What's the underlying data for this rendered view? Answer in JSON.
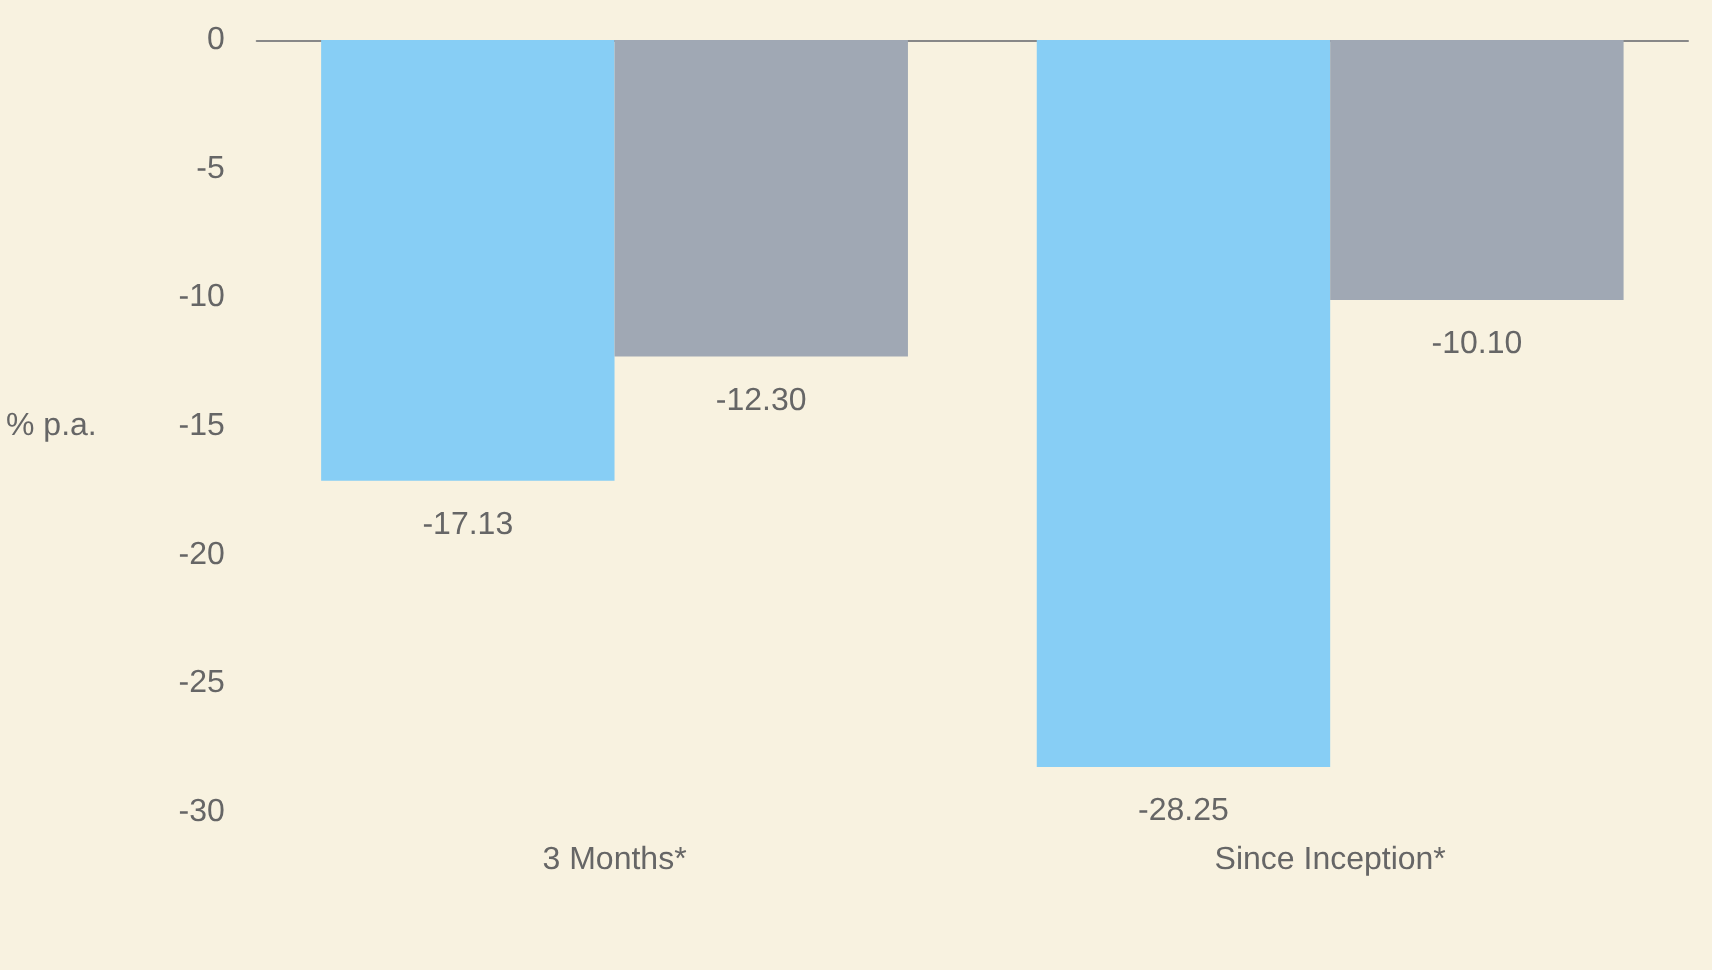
{
  "chart_data": {
    "type": "bar",
    "ylabel": "% p.a.",
    "categories": [
      "3 Months*",
      "Since Inception*"
    ],
    "series": [
      {
        "color": "#87cef5",
        "values": [
          -17.13,
          -28.25
        ],
        "value_labels": [
          "-17.13",
          "-28.25"
        ]
      },
      {
        "color": "#a0a8b4",
        "values": [
          -12.3,
          -10.1
        ],
        "value_labels": [
          "-12.30",
          "-10.10"
        ]
      }
    ],
    "ylim": [
      -30,
      0
    ],
    "yticks": [
      -30,
      -25,
      -20,
      -15,
      -10,
      -5,
      0
    ],
    "grid": false
  }
}
